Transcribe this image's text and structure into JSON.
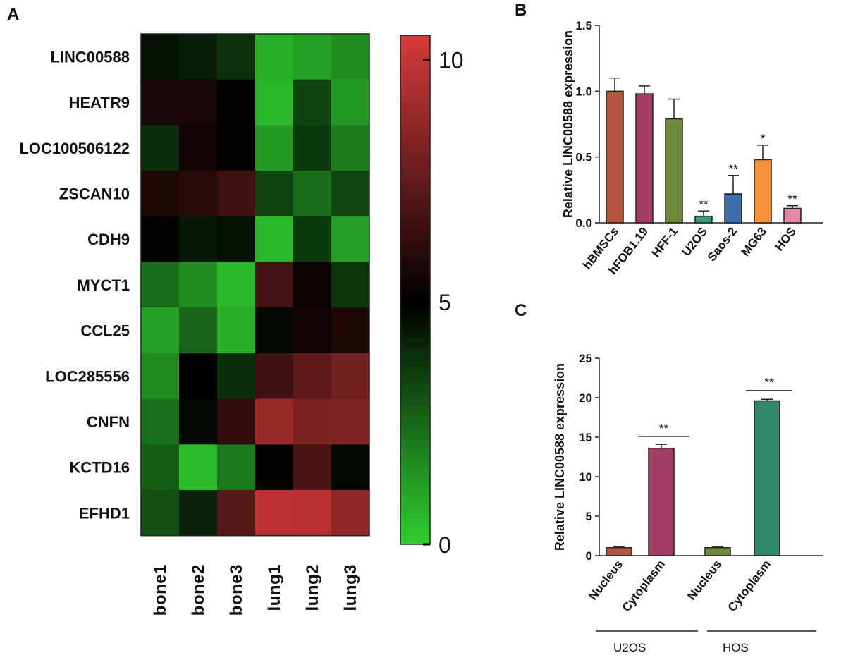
{
  "panel_labels": {
    "a": "A",
    "b": "B",
    "c": "C"
  },
  "chart_data": [
    {
      "id": "A",
      "type": "heatmap",
      "rows": [
        "LINC00588",
        "HEATR9",
        "LOC100506122",
        "ZSCAN10",
        "CDH9",
        "MYCT1",
        "CCL25",
        "LOC285556",
        "CNFN",
        "KCTD16",
        "EFHD1"
      ],
      "columns": [
        "bone1",
        "bone2",
        "bone3",
        "lung1",
        "lung2",
        "lung3"
      ],
      "values": [
        [
          4.6,
          4.3,
          3.8,
          0.8,
          1.1,
          1.6
        ],
        [
          5.6,
          5.6,
          5.1,
          0.6,
          3.4,
          1.3
        ],
        [
          3.9,
          5.5,
          5.1,
          1.3,
          3.6,
          2.0
        ],
        [
          5.8,
          6.0,
          6.6,
          3.4,
          2.4,
          3.3
        ],
        [
          5.1,
          4.4,
          4.6,
          0.6,
          3.6,
          1.2
        ],
        [
          2.4,
          1.6,
          0.6,
          6.7,
          5.3,
          3.7
        ],
        [
          1.1,
          2.6,
          0.8,
          4.8,
          5.5,
          5.8
        ],
        [
          1.6,
          5.0,
          3.9,
          6.6,
          7.4,
          7.9
        ],
        [
          2.3,
          4.8,
          6.2,
          8.9,
          8.1,
          8.2
        ],
        [
          2.8,
          0.5,
          2.1,
          5.1,
          6.9,
          4.8
        ],
        [
          3.1,
          4.2,
          7.2,
          9.8,
          9.7,
          8.7
        ]
      ],
      "colorbar": {
        "min": 0,
        "max": 10.5,
        "ticks": [
          "10",
          "5",
          "0"
        ],
        "colors": [
          "#30d030",
          "#000000",
          "#d83a3a"
        ]
      }
    },
    {
      "id": "B",
      "type": "bar",
      "categories": [
        "hBMSCs",
        "hFOB1.19",
        "HFF-1",
        "U2OS",
        "Saos-2",
        "MG63",
        "HOS"
      ],
      "values": [
        1.0,
        0.98,
        0.79,
        0.05,
        0.22,
        0.48,
        0.11
      ],
      "errors": [
        0.1,
        0.06,
        0.15,
        0.04,
        0.14,
        0.11,
        0.02
      ],
      "colors": [
        "#b4573e",
        "#a33c62",
        "#6c8a3a",
        "#3a9a80",
        "#3d6fae",
        "#f7923a",
        "#e48aa8"
      ],
      "annotations": [
        "",
        "",
        "",
        "**",
        "**",
        "*",
        "**"
      ],
      "ylabel": "Relative LINC00588 expression",
      "ylim": [
        0,
        1.5
      ],
      "yticks": [
        "0.0",
        "0.5",
        "1.0",
        "1.5"
      ]
    },
    {
      "id": "C",
      "type": "bar",
      "categories": [
        "Nucleus",
        "Cytoplasm",
        "Nucleus",
        "Cytoplasm"
      ],
      "values": [
        1.0,
        13.6,
        1.0,
        19.6
      ],
      "errors": [
        0.15,
        0.5,
        0.15,
        0.2
      ],
      "colors": [
        "#b4573e",
        "#a33c62",
        "#6c8a3a",
        "#2f8a6c"
      ],
      "groups": [
        "U2OS",
        "HOS"
      ],
      "significance": [
        "**",
        "**"
      ],
      "ylabel": "Relative LINC00588 expression",
      "ylim": [
        0,
        25
      ],
      "yticks": [
        "0",
        "5",
        "10",
        "15",
        "20",
        "25"
      ]
    }
  ]
}
